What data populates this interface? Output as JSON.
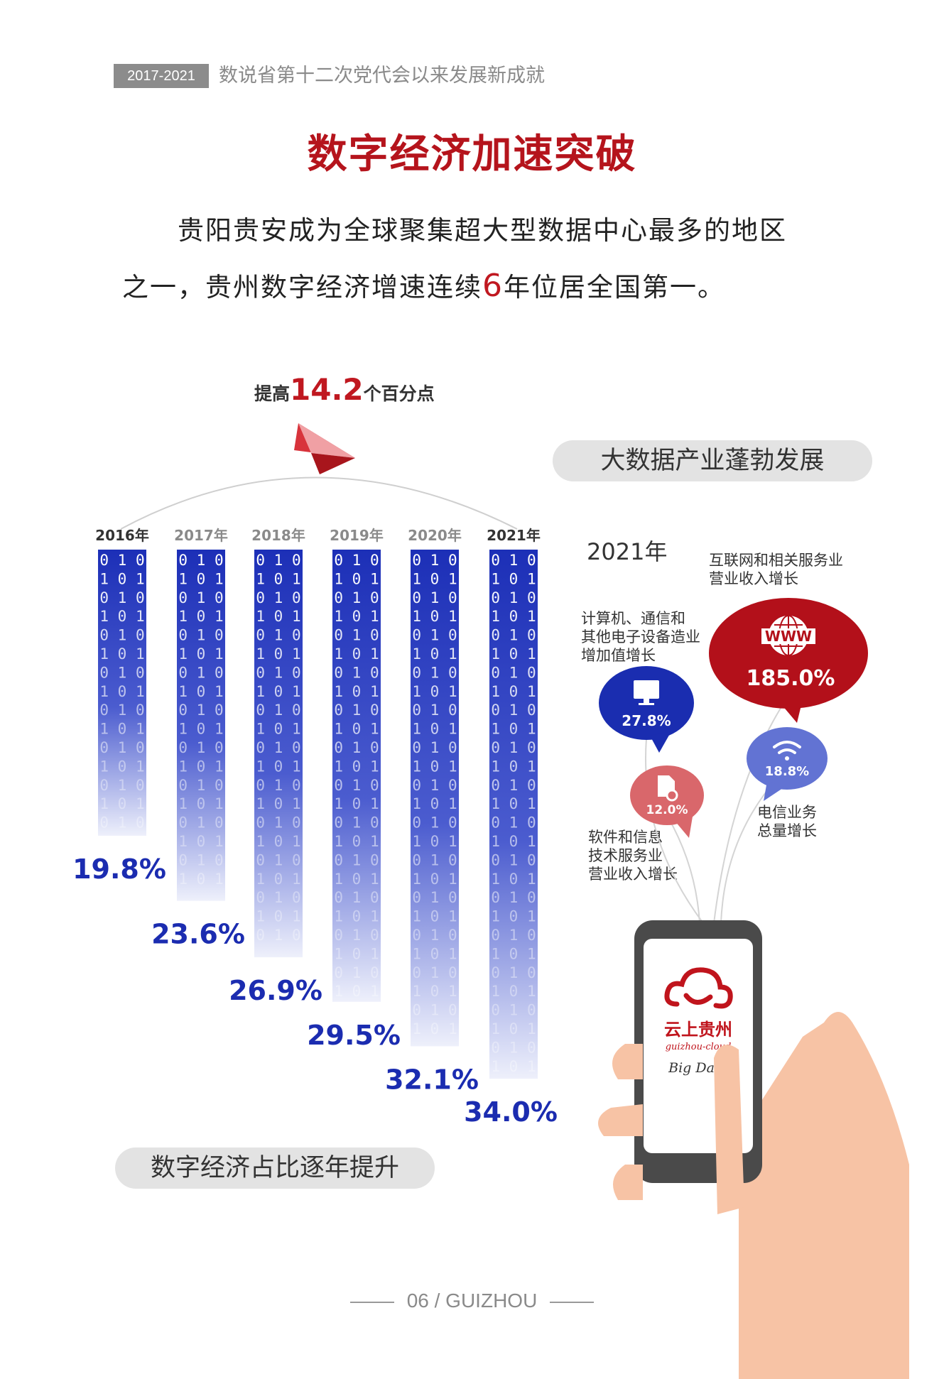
{
  "header": {
    "tag": "2017-2021",
    "title": "数说省第十二次党代会以来发展新成就"
  },
  "main_title": "数字经济加速突破",
  "intro": {
    "line1": "贵阳贵安成为全球聚集超大型数据中心最多的地区",
    "line2a": "之一，贵州数字经济增速连续",
    "highlight": "6",
    "line2b": "年位居全国第一。"
  },
  "raise": {
    "prefix": "提高",
    "value": "14.2",
    "suffix": "个百分点"
  },
  "chart_data": [
    {
      "type": "bar",
      "title": "数字经济占比逐年提升",
      "categories": [
        "2016年",
        "2017年",
        "2018年",
        "2019年",
        "2020年",
        "2021年"
      ],
      "values": [
        19.8,
        23.6,
        26.9,
        29.5,
        32.1,
        34.0
      ],
      "labels": [
        "19.8%",
        "23.6%",
        "26.9%",
        "29.5%",
        "32.1%",
        "34.0%"
      ],
      "unit": "%",
      "bar_color": "#1c2fb7",
      "label_color": "#1b2cb0"
    },
    {
      "type": "bubble",
      "title": "大数据产业蓬勃发展",
      "year": "2021年",
      "items": [
        {
          "name": "互联网和相关服务业营业收入增长",
          "lines": [
            "互联网和相关服务业",
            "营业收入增长"
          ],
          "value": 185.0,
          "label": "185.0%",
          "icon": "www-globe-icon",
          "color": "#b3101a"
        },
        {
          "name": "计算机、通信和其他电子设备造业增加值增长",
          "lines": [
            "计算机、通信和",
            "其他电子设备造业",
            "增加值增长"
          ],
          "value": 27.8,
          "label": "27.8%",
          "icon": "monitor-icon",
          "color": "#1a2db0"
        },
        {
          "name": "电信业务总量增长",
          "lines": [
            "电信业务",
            "总量增长"
          ],
          "value": 18.8,
          "label": "18.8%",
          "icon": "wifi-icon",
          "color": "#6273d3"
        },
        {
          "name": "软件和信息技术服务业营业收入增长",
          "lines": [
            "软件和信息",
            "技术服务业",
            "营业收入增长"
          ],
          "value": 12.0,
          "label": "12.0%",
          "icon": "gear-file-icon",
          "color": "#d9676b"
        }
      ]
    }
  ],
  "phone": {
    "brand": "云上贵州",
    "sub": "guizhou-cloud",
    "tagline": "Big Data",
    "icon": "cloud-logo-icon"
  },
  "footer": "06 / GUIZHOU",
  "colors": {
    "accent_red": "#b5141c",
    "blue": "#1b2cb0",
    "pill_bg": "#e3e3e3"
  }
}
